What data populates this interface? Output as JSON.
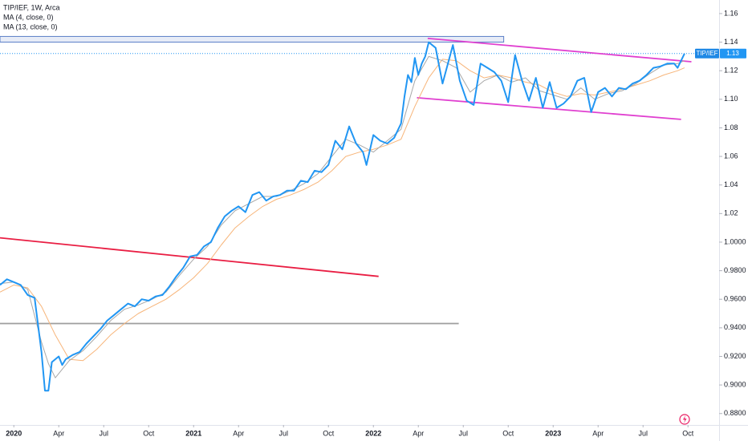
{
  "chart_data": {
    "type": "line",
    "title": "TIP/IEF, 1W, Arca",
    "last_value_label": "1.13",
    "xlim": [
      0,
      208
    ],
    "ylim": [
      0.872,
      1.1695
    ],
    "grid": false,
    "xticks": [
      {
        "value": 4,
        "label": "2020"
      },
      {
        "value": 17,
        "label": "Apr"
      },
      {
        "value": 30,
        "label": "Jul"
      },
      {
        "value": 43,
        "label": "Oct"
      },
      {
        "value": 56,
        "label": "2021"
      },
      {
        "value": 69,
        "label": "Apr"
      },
      {
        "value": 82,
        "label": "Jul"
      },
      {
        "value": 95,
        "label": "Oct"
      },
      {
        "value": 108,
        "label": "2022"
      },
      {
        "value": 121,
        "label": "Apr"
      },
      {
        "value": 134,
        "label": "Jul"
      },
      {
        "value": 147,
        "label": "Oct"
      },
      {
        "value": 160,
        "label": "2023"
      },
      {
        "value": 173,
        "label": "Apr"
      },
      {
        "value": 186,
        "label": "Jul"
      },
      {
        "value": 199,
        "label": "Oct"
      }
    ],
    "yticks": [
      1.16,
      1.14,
      1.12,
      {
        "value": 1.1,
        "label": "1.10"
      },
      1.08,
      1.06,
      1.04,
      1.02,
      {
        "value": 1,
        "label": "1.0000"
      },
      {
        "value": 0.98,
        "label": "0.9800"
      },
      {
        "value": 0.96,
        "label": "0.9600"
      },
      {
        "value": 0.94,
        "label": "0.9400"
      },
      {
        "value": 0.92,
        "label": "0.9200"
      },
      {
        "value": 0.9,
        "label": "0.9000"
      },
      {
        "value": 0.88,
        "label": "0.8800"
      }
    ],
    "series": [
      {
        "name": "TIP/IEF",
        "color": "#2196f3",
        "x": [
          0,
          2,
          4,
          6,
          8,
          10,
          11,
          12,
          13,
          14,
          15,
          17,
          18,
          19,
          21,
          23,
          25,
          27,
          29,
          31,
          33,
          35,
          37,
          39,
          41,
          43,
          45,
          47,
          49,
          51,
          53,
          55,
          57,
          59,
          61,
          63,
          65,
          67,
          69,
          71,
          73,
          75,
          77,
          79,
          81,
          83,
          85,
          87,
          89,
          91,
          93,
          95,
          97,
          99,
          101,
          103,
          105,
          106,
          108,
          110,
          112,
          114,
          116,
          117,
          118,
          119,
          120,
          121,
          122,
          123,
          124,
          126,
          128,
          130,
          131,
          133,
          135,
          137,
          139,
          141,
          143,
          145,
          147,
          149,
          151,
          153,
          155,
          157,
          159,
          161,
          163,
          165,
          167,
          169,
          171,
          173,
          175,
          177,
          179,
          181,
          183,
          185,
          187,
          189,
          191,
          193,
          195,
          196,
          198
        ],
        "values": [
          0.97,
          0.974,
          0.972,
          0.97,
          0.963,
          0.961,
          0.942,
          0.923,
          0.896,
          0.896,
          0.916,
          0.92,
          0.914,
          0.918,
          0.921,
          0.923,
          0.929,
          0.934,
          0.939,
          0.945,
          0.949,
          0.953,
          0.957,
          0.955,
          0.96,
          0.959,
          0.962,
          0.963,
          0.969,
          0.976,
          0.982,
          0.99,
          0.991,
          0.997,
          1.0,
          1.01,
          1.018,
          1.022,
          1.025,
          1.021,
          1.033,
          1.035,
          1.029,
          1.032,
          1.033,
          1.036,
          1.036,
          1.043,
          1.042,
          1.05,
          1.049,
          1.054,
          1.071,
          1.065,
          1.081,
          1.069,
          1.063,
          1.054,
          1.075,
          1.071,
          1.069,
          1.073,
          1.083,
          1.102,
          1.117,
          1.112,
          1.129,
          1.117,
          1.125,
          1.13,
          1.14,
          1.136,
          1.111,
          1.129,
          1.138,
          1.113,
          1.099,
          1.096,
          1.125,
          1.122,
          1.119,
          1.113,
          1.098,
          1.131,
          1.113,
          1.099,
          1.115,
          1.094,
          1.112,
          1.094,
          1.097,
          1.102,
          1.113,
          1.115,
          1.091,
          1.105,
          1.108,
          1.102,
          1.108,
          1.107,
          1.111,
          1.113,
          1.117,
          1.122,
          1.123,
          1.125,
          1.125,
          1.122,
          1.132
        ]
      },
      {
        "name": "MA (4, close, 0)",
        "color": "#a8a8a8",
        "x": [
          0,
          4,
          8,
          12,
          14,
          16,
          20,
          24,
          28,
          32,
          36,
          40,
          44,
          48,
          52,
          56,
          60,
          64,
          68,
          72,
          76,
          80,
          84,
          88,
          92,
          96,
          100,
          104,
          108,
          112,
          116,
          120,
          124,
          128,
          132,
          136,
          140,
          144,
          148,
          152,
          156,
          160,
          164,
          168,
          172,
          176,
          180,
          184,
          188,
          192,
          196,
          198
        ],
        "values": [
          0.971,
          0.972,
          0.967,
          0.93,
          0.915,
          0.905,
          0.917,
          0.924,
          0.934,
          0.945,
          0.953,
          0.956,
          0.96,
          0.965,
          0.977,
          0.988,
          0.997,
          1.012,
          1.022,
          1.027,
          1.032,
          1.032,
          1.036,
          1.041,
          1.048,
          1.06,
          1.072,
          1.068,
          1.063,
          1.071,
          1.079,
          1.113,
          1.13,
          1.127,
          1.122,
          1.105,
          1.113,
          1.117,
          1.112,
          1.115,
          1.106,
          1.103,
          1.1,
          1.108,
          1.1,
          1.104,
          1.106,
          1.111,
          1.118,
          1.124,
          1.125,
          1.127
        ]
      },
      {
        "name": "MA (13, close, 0)",
        "color": "#f7b57a",
        "x": [
          0,
          4,
          8,
          12,
          16,
          20,
          24,
          28,
          32,
          36,
          40,
          44,
          48,
          52,
          56,
          60,
          64,
          68,
          72,
          76,
          80,
          84,
          88,
          92,
          96,
          100,
          104,
          108,
          112,
          116,
          120,
          124,
          128,
          132,
          136,
          140,
          144,
          148,
          152,
          156,
          160,
          164,
          168,
          172,
          176,
          180,
          184,
          188,
          192,
          196,
          198
        ],
        "values": [
          0.965,
          0.97,
          0.968,
          0.955,
          0.935,
          0.918,
          0.917,
          0.925,
          0.935,
          0.943,
          0.95,
          0.955,
          0.96,
          0.967,
          0.975,
          0.985,
          0.998,
          1.01,
          1.018,
          1.025,
          1.03,
          1.033,
          1.037,
          1.042,
          1.05,
          1.06,
          1.063,
          1.065,
          1.068,
          1.072,
          1.095,
          1.115,
          1.128,
          1.127,
          1.12,
          1.115,
          1.117,
          1.115,
          1.112,
          1.11,
          1.105,
          1.102,
          1.104,
          1.103,
          1.105,
          1.107,
          1.11,
          1.113,
          1.117,
          1.12,
          1.122
        ]
      }
    ],
    "drawings": [
      {
        "color": "#e91e43",
        "x": [
          0,
          109.5
        ],
        "values": [
          1.003,
          0.976
        ]
      },
      {
        "color": "#9e9e9e",
        "x": [
          0,
          132.7
        ],
        "values": [
          0.943,
          0.943
        ]
      },
      {
        "color": "#e040d0",
        "x": [
          123.7,
          200
        ],
        "values": [
          1.1426,
          1.1263
        ]
      },
      {
        "color": "#e040d0",
        "x": [
          120.6,
          197
        ],
        "values": [
          1.1011,
          1.0859
        ]
      }
    ],
    "zone": {
      "color": "#5b7fc7",
      "x": [
        0,
        145.7
      ],
      "values": [
        1.144,
        1.14
      ]
    }
  }
}
